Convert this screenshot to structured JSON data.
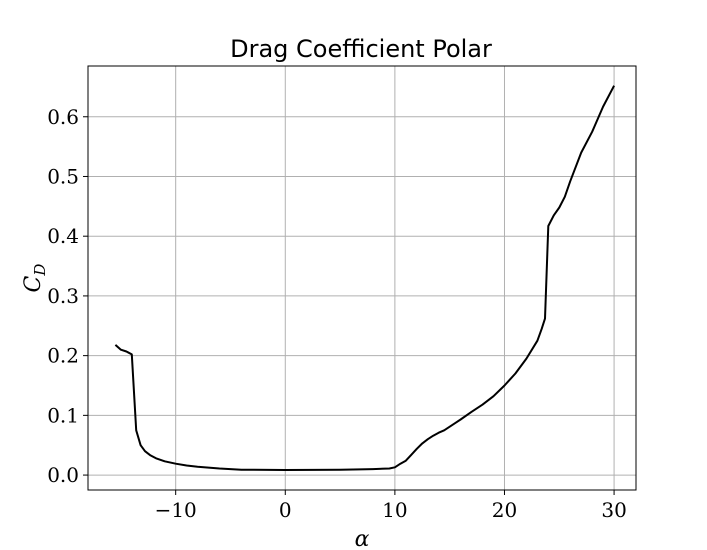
{
  "chart_data": {
    "type": "line",
    "title": "Drag Coefficient Polar",
    "xlabel": "α",
    "ylabel_main": "C",
    "ylabel_sub": "D",
    "xlim": [
      -18,
      32
    ],
    "ylim": [
      -0.025,
      0.685
    ],
    "xticks": [
      -10,
      0,
      10,
      20,
      30
    ],
    "xtick_labels": [
      "−10",
      "0",
      "10",
      "20",
      "30"
    ],
    "yticks": [
      0.0,
      0.1,
      0.2,
      0.3,
      0.4,
      0.5,
      0.6
    ],
    "ytick_labels": [
      "0.0",
      "0.1",
      "0.2",
      "0.3",
      "0.4",
      "0.5",
      "0.6"
    ],
    "grid": true,
    "series_color": "#000000",
    "x": [
      -15.5,
      -15.0,
      -14.5,
      -14.0,
      -13.6,
      -13.2,
      -12.8,
      -12.3,
      -11.8,
      -11.0,
      -10.0,
      -9.0,
      -8.0,
      -6.0,
      -4.0,
      0.0,
      5.0,
      8.0,
      9.5,
      10.0,
      10.5,
      11.0,
      11.5,
      12.0,
      12.5,
      13.0,
      13.5,
      14.0,
      14.5,
      15.0,
      15.5,
      16.0,
      17.0,
      18.0,
      19.0,
      20.0,
      21.0,
      22.0,
      23.0,
      23.4,
      23.7,
      24.0,
      24.5,
      25.0,
      25.5,
      26.0,
      27.0,
      28.0,
      29.0,
      30.0
    ],
    "y": [
      0.218,
      0.21,
      0.207,
      0.202,
      0.075,
      0.05,
      0.04,
      0.033,
      0.028,
      0.023,
      0.019,
      0.016,
      0.014,
      0.011,
      0.009,
      0.0085,
      0.009,
      0.01,
      0.011,
      0.013,
      0.019,
      0.024,
      0.034,
      0.044,
      0.053,
      0.06,
      0.066,
      0.071,
      0.075,
      0.081,
      0.087,
      0.093,
      0.106,
      0.118,
      0.132,
      0.15,
      0.17,
      0.195,
      0.225,
      0.245,
      0.262,
      0.417,
      0.435,
      0.448,
      0.466,
      0.492,
      0.54,
      0.575,
      0.617,
      0.652
    ]
  }
}
